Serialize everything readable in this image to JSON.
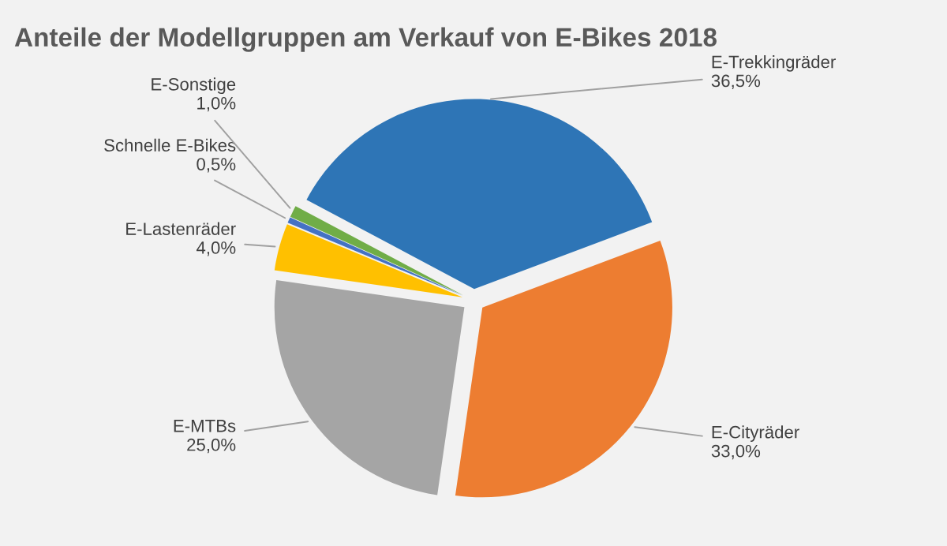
{
  "chart_data": {
    "type": "pie",
    "title": "Anteile der Modellgruppen am Verkauf von E-Bikes 2018",
    "categories": [
      "E-Trekkingräder",
      "E-Cityräder",
      "E-MTBs",
      "E-Lastenräder",
      "Schnelle E-Bikes",
      "E-Sonstige"
    ],
    "values": [
      36.5,
      33.0,
      25.0,
      4.0,
      0.5,
      1.0
    ],
    "value_labels": [
      "36,5%",
      "33,0%",
      "25,0%",
      "4,0%",
      "0,5%",
      "1,0%"
    ],
    "colors": [
      "#2e75b6",
      "#ed7d31",
      "#a5a5a5",
      "#ffc000",
      "#4472c4",
      "#70ad47"
    ],
    "legend": false
  }
}
